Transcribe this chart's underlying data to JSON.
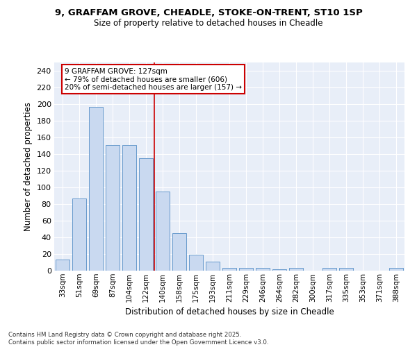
{
  "title1": "9, GRAFFAM GROVE, CHEADLE, STOKE-ON-TRENT, ST10 1SP",
  "title2": "Size of property relative to detached houses in Cheadle",
  "xlabel": "Distribution of detached houses by size in Cheadle",
  "ylabel": "Number of detached properties",
  "categories": [
    "33sqm",
    "51sqm",
    "69sqm",
    "87sqm",
    "104sqm",
    "122sqm",
    "140sqm",
    "158sqm",
    "175sqm",
    "193sqm",
    "211sqm",
    "229sqm",
    "246sqm",
    "264sqm",
    "282sqm",
    "300sqm",
    "317sqm",
    "335sqm",
    "353sqm",
    "371sqm",
    "388sqm"
  ],
  "values": [
    13,
    87,
    197,
    151,
    151,
    135,
    95,
    45,
    19,
    11,
    3,
    3,
    3,
    2,
    3,
    0,
    3,
    3,
    0,
    0,
    3
  ],
  "bar_color": "#c9d9f0",
  "bar_edge_color": "#6699cc",
  "vline_color": "#cc0000",
  "vline_pos": 5.5,
  "annotation_text": "9 GRAFFAM GROVE: 127sqm\n← 79% of detached houses are smaller (606)\n20% of semi-detached houses are larger (157) →",
  "annotation_box_color": "#ffffff",
  "annotation_box_edge_color": "#cc0000",
  "ylim": [
    0,
    250
  ],
  "yticks": [
    0,
    20,
    40,
    60,
    80,
    100,
    120,
    140,
    160,
    180,
    200,
    220,
    240
  ],
  "bg_color": "#e8eef8",
  "footer1": "Contains HM Land Registry data © Crown copyright and database right 2025.",
  "footer2": "Contains public sector information licensed under the Open Government Licence v3.0."
}
